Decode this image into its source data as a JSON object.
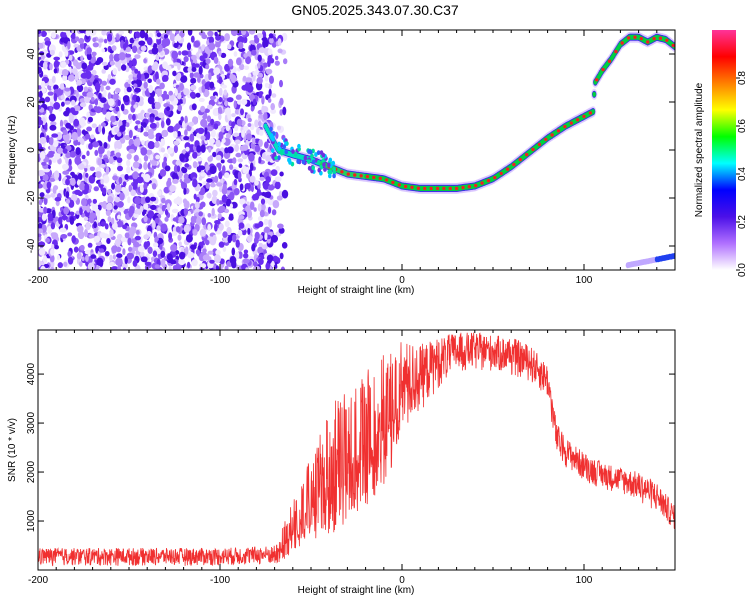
{
  "title": "GN05.2025.343.07.30.C37",
  "chart_data": [
    {
      "type": "heatmap",
      "xlabel": "Height of straight line (km)",
      "ylabel": "Frequency (Hz)",
      "xlim": [
        -200,
        150
      ],
      "ylim": [
        -50,
        50
      ],
      "xticks": [
        "-200",
        "-100",
        "0",
        "100"
      ],
      "yticks": [
        "-40",
        "-20",
        "0",
        "20",
        "40"
      ],
      "colorbar": {
        "label": "Normalized spectral amplitude",
        "range": [
          0,
          1
        ],
        "ticks": [
          "0.0",
          "0.2",
          "0.4",
          "0.6",
          "0.8"
        ],
        "colors": [
          "#ffffff",
          "#b070ff",
          "#4b10e8",
          "#0000ff",
          "#00ffff",
          "#00ff00",
          "#ffff00",
          "#ff8000",
          "#ff0000",
          "#ff3399"
        ]
      },
      "noise_region_x": [
        -200,
        -70
      ],
      "ridge": {
        "x": [
          -75,
          -68,
          -60,
          -50,
          -40,
          -30,
          -20,
          -10,
          0,
          10,
          20,
          30,
          40,
          50,
          60,
          70,
          80,
          90,
          100,
          105,
          106,
          110,
          115,
          120,
          125,
          130,
          135,
          140,
          145,
          150
        ],
        "freq": [
          10,
          0,
          -2,
          -4,
          -7,
          -10,
          -11,
          -12,
          -15,
          -16,
          -16,
          -16,
          -15,
          -12,
          -7,
          -1,
          5,
          10,
          14,
          16,
          28,
          33,
          38,
          44,
          47,
          47,
          45,
          47,
          46,
          43
        ]
      }
    },
    {
      "type": "line",
      "xlabel": "Height of straight line (km)",
      "ylabel": "SNR (10 * v/v)",
      "xlim": [
        -200,
        150
      ],
      "ylim": [
        0,
        4900
      ],
      "xticks": [
        "-200",
        "-100",
        "0",
        "100"
      ],
      "yticks": [
        "1000",
        "2000",
        "3000",
        "4000"
      ],
      "series": [
        {
          "name": "SNR",
          "color": "#f03030",
          "envelope": {
            "x": [
              -200,
              -150,
              -100,
              -70,
              -60,
              -50,
              -40,
              -30,
              -20,
              -10,
              0,
              10,
              20,
              30,
              40,
              50,
              60,
              70,
              80,
              85,
              90,
              100,
              110,
              120,
              130,
              140,
              150
            ],
            "low": [
              80,
              80,
              80,
              100,
              300,
              600,
              700,
              900,
              1300,
              1700,
              2600,
              3200,
              3700,
              4000,
              4050,
              4050,
              3950,
              3850,
              3500,
              2300,
              2100,
              1800,
              1650,
              1550,
              1400,
              1150,
              800
            ],
            "high": [
              450,
              450,
              450,
              500,
              1500,
              2300,
              3300,
              3800,
              4100,
              4400,
              4700,
              4600,
              4750,
              4850,
              4850,
              4800,
              4750,
              4600,
              4200,
              3000,
              2700,
              2400,
              2200,
              2100,
              2000,
              1800,
              1300
            ]
          }
        }
      ]
    }
  ]
}
